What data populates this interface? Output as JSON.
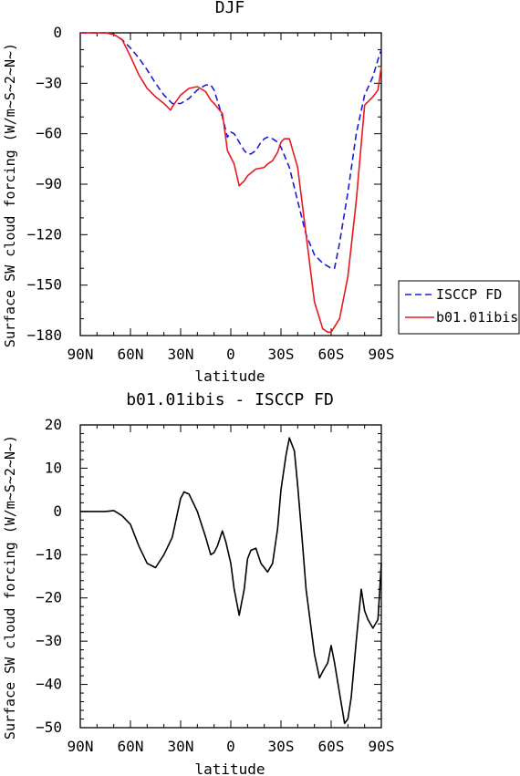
{
  "chart_data": [
    {
      "type": "line",
      "title": "DJF",
      "xlabel": "latitude",
      "ylabel": "Surface SW cloud forcing (W/m~S~2~N~)",
      "x_ticks": [
        {
          "x": -90,
          "label": "90N"
        },
        {
          "x": -60,
          "label": "60N"
        },
        {
          "x": -30,
          "label": "30N"
        },
        {
          "x": 0,
          "label": "0"
        },
        {
          "x": 30,
          "label": "30S"
        },
        {
          "x": 60,
          "label": "60S"
        },
        {
          "x": 90,
          "label": "90S"
        }
      ],
      "xlim": [
        -90,
        90
      ],
      "ylim": [
        -180,
        0
      ],
      "y_ticks": [
        0,
        -30,
        -60,
        -90,
        -120,
        -150,
        -180
      ],
      "legend_placement": "right",
      "series": [
        {
          "name": "ISCCP FD",
          "color": "#1a1adc",
          "dash": "dashed",
          "x": [
            -90,
            -80,
            -75,
            -70,
            -65,
            -60,
            -55,
            -50,
            -45,
            -40,
            -35,
            -30,
            -25,
            -20,
            -15,
            -12,
            -10,
            -5,
            -2,
            0,
            2,
            5,
            8,
            10,
            12,
            15,
            18,
            20,
            22,
            25,
            28,
            30,
            35,
            40,
            45,
            50,
            55,
            60,
            62,
            65,
            70,
            75,
            80,
            85,
            88,
            90
          ],
          "y": [
            0,
            0,
            0,
            -1,
            -4,
            -9,
            -15,
            -22,
            -30,
            -37,
            -42,
            -42,
            -39,
            -34,
            -31,
            -31,
            -34,
            -50,
            -62,
            -59,
            -60,
            -65,
            -70,
            -72,
            -72,
            -70,
            -65,
            -63,
            -62,
            -63,
            -65,
            -68,
            -80,
            -100,
            -120,
            -132,
            -137,
            -140,
            -140,
            -125,
            -95,
            -60,
            -37,
            -26,
            -16,
            -10
          ]
        },
        {
          "name": "b01.01ibis",
          "color": "#e8191f",
          "dash": "solid",
          "x": [
            -90,
            -80,
            -75,
            -70,
            -65,
            -60,
            -55,
            -50,
            -45,
            -40,
            -36,
            -35,
            -30,
            -25,
            -20,
            -15,
            -12,
            -10,
            -5,
            -2,
            0,
            2,
            5,
            8,
            10,
            15,
            20,
            22,
            25,
            28,
            30,
            32,
            35,
            40,
            45,
            50,
            55,
            58,
            60,
            65,
            70,
            75,
            80,
            85,
            88,
            90
          ],
          "y": [
            0,
            0,
            0,
            -1,
            -4,
            -14,
            -25,
            -33,
            -38,
            -42,
            -46,
            -44,
            -37,
            -33,
            -32,
            -35,
            -40,
            -42,
            -48,
            -70,
            -74,
            -78,
            -91,
            -88,
            -85,
            -81,
            -80,
            -78,
            -76,
            -71,
            -65,
            -63,
            -63,
            -80,
            -120,
            -160,
            -176,
            -178,
            -178,
            -170,
            -145,
            -100,
            -43,
            -38,
            -34,
            -20
          ]
        }
      ]
    },
    {
      "type": "line",
      "title": "b01.01ibis - ISCCP FD",
      "xlabel": "latitude",
      "ylabel": "Surface SW cloud forcing (W/m~S~2~N~)",
      "x_ticks": [
        {
          "x": -90,
          "label": "90N"
        },
        {
          "x": -60,
          "label": "60N"
        },
        {
          "x": -30,
          "label": "30N"
        },
        {
          "x": 0,
          "label": "0"
        },
        {
          "x": 30,
          "label": "30S"
        },
        {
          "x": 60,
          "label": "60S"
        },
        {
          "x": 90,
          "label": "90S"
        }
      ],
      "xlim": [
        -90,
        90
      ],
      "ylim": [
        -50,
        20
      ],
      "y_ticks": [
        20,
        10,
        0,
        -10,
        -20,
        -30,
        -40,
        -50
      ],
      "series": [
        {
          "color": "#000000",
          "dash": "solid",
          "x": [
            -90,
            -80,
            -75,
            -70,
            -65,
            -60,
            -55,
            -50,
            -45,
            -40,
            -35,
            -30,
            -28,
            -25,
            -20,
            -15,
            -12,
            -10,
            -8,
            -5,
            -3,
            0,
            2,
            5,
            8,
            10,
            12,
            15,
            18,
            20,
            22,
            25,
            28,
            30,
            33,
            35,
            38,
            40,
            43,
            45,
            48,
            50,
            53,
            55,
            58,
            60,
            62,
            65,
            68,
            70,
            72,
            75,
            78,
            80,
            82,
            85,
            88,
            90
          ],
          "y": [
            0,
            0,
            0,
            0.2,
            -1,
            -3,
            -8,
            -12,
            -13,
            -10,
            -6,
            3,
            4.5,
            4,
            0,
            -6,
            -10,
            -9.5,
            -8,
            -4.5,
            -7,
            -12,
            -18,
            -24,
            -18,
            -11,
            -9,
            -8.5,
            -12,
            -13,
            -14,
            -12,
            -4,
            5,
            13,
            17,
            14,
            6,
            -8,
            -18,
            -27,
            -33,
            -38.5,
            -37,
            -35,
            -31,
            -35,
            -42,
            -49,
            -48,
            -43,
            -30,
            -18,
            -23,
            -25,
            -27,
            -25,
            -12
          ]
        }
      ]
    }
  ]
}
